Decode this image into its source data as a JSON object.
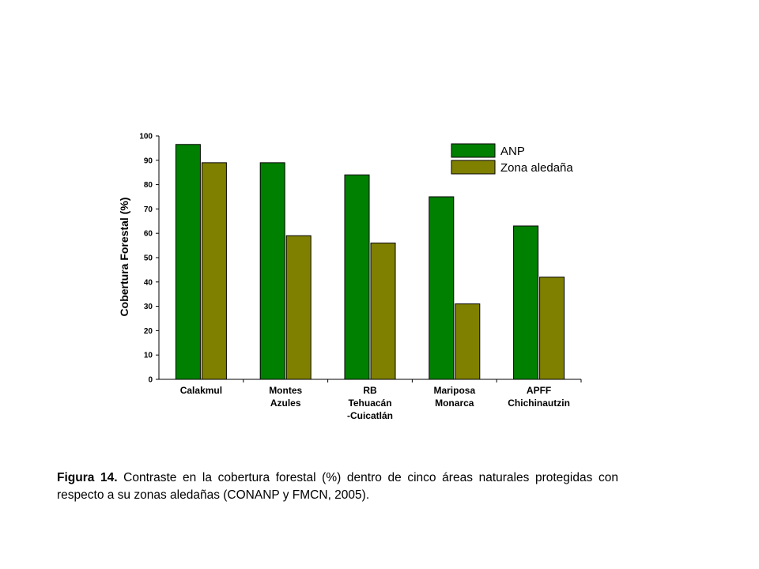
{
  "chart_data": {
    "type": "bar",
    "categories": [
      [
        "Calakmul"
      ],
      [
        "Montes",
        "Azules"
      ],
      [
        "RB",
        "Tehuacán",
        "-Cuicatlán"
      ],
      [
        "Mariposa",
        "Monarca"
      ],
      [
        "APFF",
        "Chichinautzin"
      ]
    ],
    "series": [
      {
        "name": "ANP",
        "color": "#008000",
        "values": [
          96.5,
          89,
          84,
          75,
          63
        ]
      },
      {
        "name": "Zona aledaña",
        "color": "#808000",
        "values": [
          89,
          59,
          56,
          31,
          42
        ]
      }
    ],
    "ylabel": "Cobertura Forestal (%)",
    "ylim": [
      0,
      100
    ],
    "yticks": [
      0,
      10,
      20,
      30,
      40,
      50,
      60,
      70,
      80,
      90,
      100
    ],
    "legend_position": "top-right",
    "grid": false
  },
  "caption": {
    "label": "Figura 14.",
    "text": " Contraste en la cobertura forestal (%) dentro de cinco áreas naturales protegidas con respecto a su zonas aledañas (CONANP y FMCN, 2005)."
  }
}
